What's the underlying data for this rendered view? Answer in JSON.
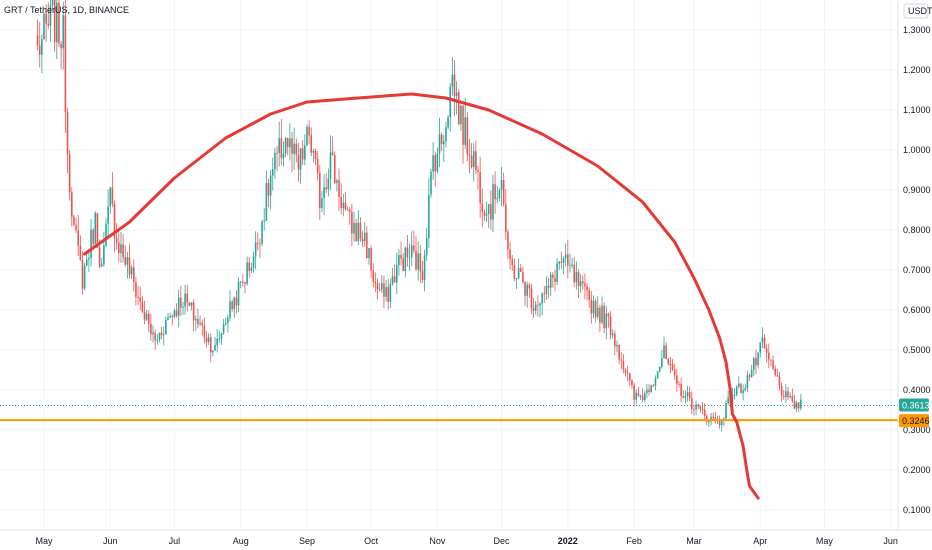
{
  "title": "GRT / TetherUS, 1D, BINANCE",
  "colors": {
    "up": "#26a69a",
    "down": "#ef5350",
    "arc": "#e53935",
    "support": "#ff9800",
    "price_tag": "#26a69a",
    "support_tag": "#ff9800",
    "grid": "#f0f3fa",
    "axis_text": "#131722"
  },
  "chart_data": {
    "type": "candlestick",
    "y_unit": "USDT",
    "ylim": [
      0.04,
      1.355
    ],
    "y_ticks": [
      "0.1000",
      "0.2000",
      "0.3000",
      "0.4000",
      "0.5000",
      "0.6000",
      "0.7000",
      "0.8000",
      "0.9000",
      "1.0000",
      "1.1000",
      "1.2000",
      "1.3000"
    ],
    "x_ticks": [
      "May",
      "Jun",
      "Jul",
      "Aug",
      "Sep",
      "Oct",
      "Nov",
      "Dec",
      "2022",
      "Feb",
      "Mar",
      "Apr",
      "May",
      "Jun"
    ],
    "current_price": "0.3613",
    "support_level": "0.3246",
    "support_line": 0.3246,
    "anchors": [
      [
        "2021-04-28",
        1.25
      ],
      [
        "2021-05-05",
        1.33
      ],
      [
        "2021-05-10",
        1.28
      ],
      [
        "2021-05-12",
        1.0
      ],
      [
        "2021-05-15",
        0.8
      ],
      [
        "2021-05-19",
        0.68
      ],
      [
        "2021-05-25",
        0.82
      ],
      [
        "2021-05-28",
        0.7
      ],
      [
        "2021-06-01",
        0.88
      ],
      [
        "2021-06-04",
        0.78
      ],
      [
        "2021-06-10",
        0.7
      ],
      [
        "2021-06-16",
        0.6
      ],
      [
        "2021-06-22",
        0.52
      ],
      [
        "2021-06-28",
        0.58
      ],
      [
        "2021-07-05",
        0.63
      ],
      [
        "2021-07-12",
        0.57
      ],
      [
        "2021-07-20",
        0.5
      ],
      [
        "2021-07-25",
        0.58
      ],
      [
        "2021-08-01",
        0.66
      ],
      [
        "2021-08-08",
        0.75
      ],
      [
        "2021-08-15",
        0.93
      ],
      [
        "2021-08-22",
        1.03
      ],
      [
        "2021-08-28",
        0.95
      ],
      [
        "2021-09-02",
        1.04
      ],
      [
        "2021-09-07",
        0.88
      ],
      [
        "2021-09-12",
        0.98
      ],
      [
        "2021-09-20",
        0.82
      ],
      [
        "2021-09-28",
        0.78
      ],
      [
        "2021-10-03",
        0.66
      ],
      [
        "2021-10-08",
        0.63
      ],
      [
        "2021-10-14",
        0.72
      ],
      [
        "2021-10-20",
        0.74
      ],
      [
        "2021-10-25",
        0.7
      ],
      [
        "2021-10-30",
        0.98
      ],
      [
        "2021-11-03",
        1.02
      ],
      [
        "2021-11-08",
        1.18
      ],
      [
        "2021-11-13",
        1.05
      ],
      [
        "2021-11-18",
        0.98
      ],
      [
        "2021-11-22",
        0.88
      ],
      [
        "2021-11-26",
        0.86
      ],
      [
        "2021-12-01",
        0.94
      ],
      [
        "2021-12-04",
        0.72
      ],
      [
        "2021-12-10",
        0.68
      ],
      [
        "2021-12-16",
        0.62
      ],
      [
        "2021-12-22",
        0.64
      ],
      [
        "2021-12-28",
        0.72
      ],
      [
        "2022-01-02",
        0.7
      ],
      [
        "2022-01-08",
        0.64
      ],
      [
        "2022-01-15",
        0.6
      ],
      [
        "2022-01-21",
        0.56
      ],
      [
        "2022-01-26",
        0.48
      ],
      [
        "2022-02-01",
        0.38
      ],
      [
        "2022-02-06",
        0.39
      ],
      [
        "2022-02-10",
        0.43
      ],
      [
        "2022-02-15",
        0.49
      ],
      [
        "2022-02-20",
        0.42
      ],
      [
        "2022-02-26",
        0.38
      ],
      [
        "2022-03-03",
        0.35
      ],
      [
        "2022-03-08",
        0.33
      ],
      [
        "2022-03-13",
        0.32
      ],
      [
        "2022-03-19",
        0.39
      ],
      [
        "2022-03-24",
        0.41
      ],
      [
        "2022-03-29",
        0.46
      ],
      [
        "2022-04-02",
        0.51
      ],
      [
        "2022-04-06",
        0.46
      ],
      [
        "2022-04-10",
        0.41
      ],
      [
        "2022-04-14",
        0.37
      ],
      [
        "2022-04-20",
        0.36
      ]
    ],
    "arc": [
      [
        "2021-05-20",
        0.74
      ],
      [
        "2021-06-10",
        0.82
      ],
      [
        "2021-07-01",
        0.93
      ],
      [
        "2021-07-25",
        1.03
      ],
      [
        "2021-08-15",
        1.09
      ],
      [
        "2021-09-01",
        1.12
      ],
      [
        "2021-09-25",
        1.13
      ],
      [
        "2021-10-20",
        1.14
      ],
      [
        "2021-11-05",
        1.13
      ],
      [
        "2021-11-25",
        1.1
      ],
      [
        "2021-12-20",
        1.04
      ],
      [
        "2022-01-15",
        0.96
      ],
      [
        "2022-02-05",
        0.87
      ],
      [
        "2022-02-20",
        0.77
      ],
      [
        "2022-03-01",
        0.68
      ],
      [
        "2022-03-08",
        0.6
      ],
      [
        "2022-03-13",
        0.53
      ],
      [
        "2022-03-16",
        0.47
      ],
      [
        "2022-03-18",
        0.4
      ],
      [
        "2022-03-19",
        0.34
      ],
      [
        "2022-03-21",
        0.32
      ],
      [
        "2022-03-24",
        0.26
      ],
      [
        "2022-03-26",
        0.19
      ],
      [
        "2022-03-27",
        0.16
      ],
      [
        "2022-03-31",
        0.13
      ]
    ]
  }
}
